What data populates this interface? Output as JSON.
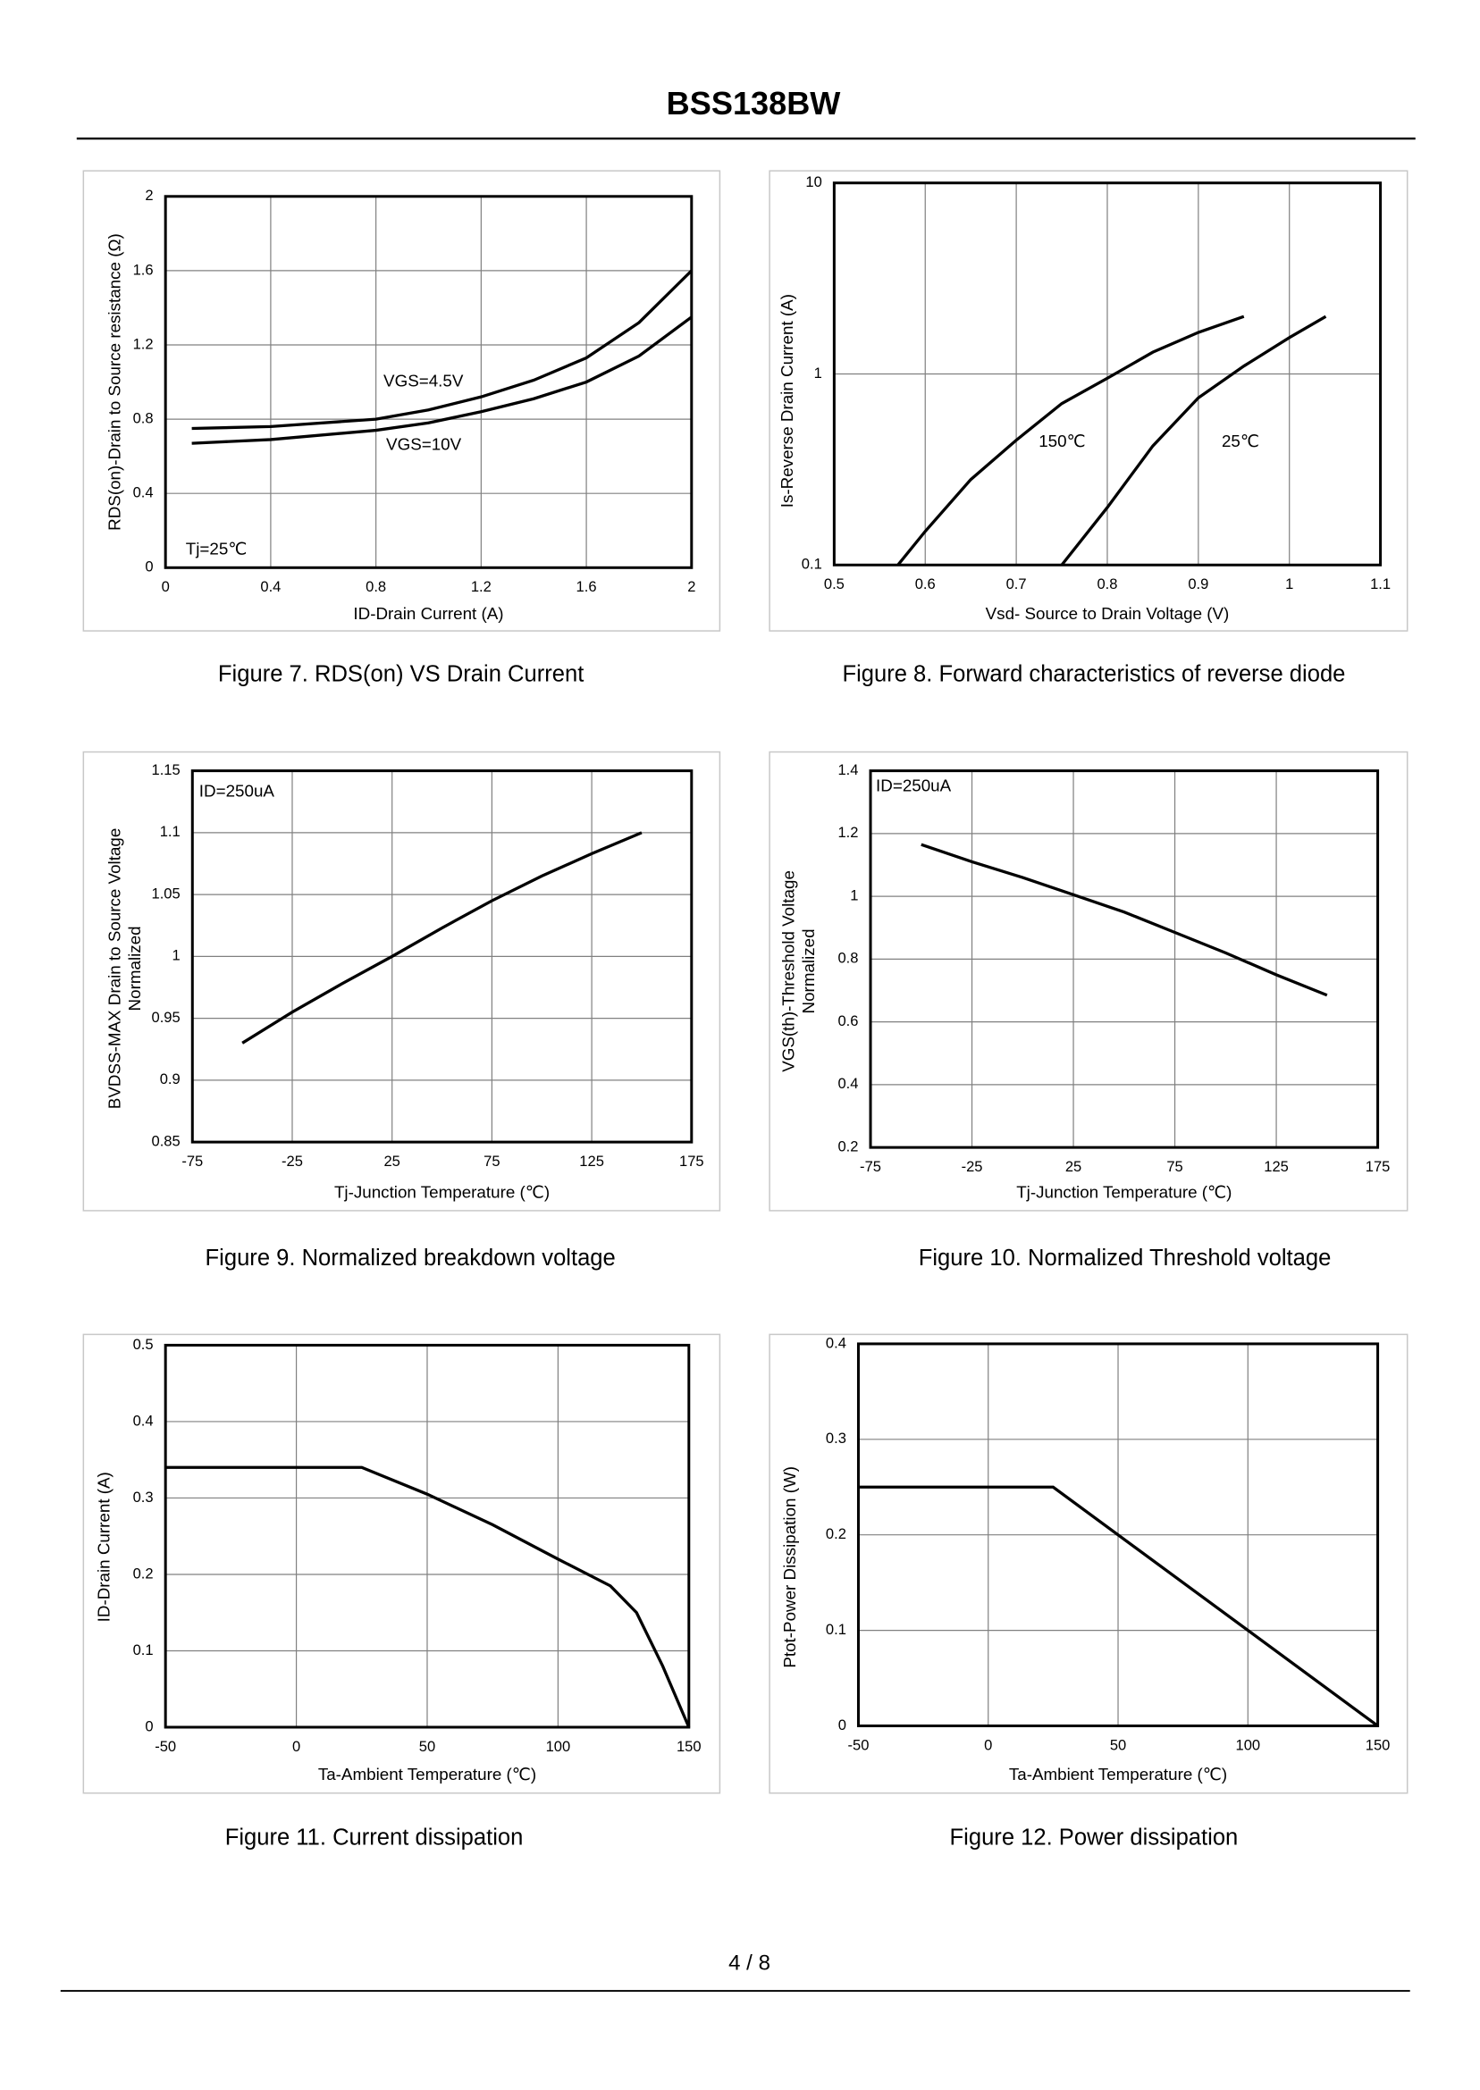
{
  "header": {
    "title": "BSS138BW"
  },
  "footer": {
    "page": "4 / 8"
  },
  "chart_data": [
    {
      "type": "line",
      "caption": "Figure 7.  RDS(on) VS Drain Current",
      "xlabel": "ID-Drain Current (A)",
      "ylabel": [
        "RDS(on)-Drain to Source resistance (Ω)"
      ],
      "annotations": [
        "Tj=25℃"
      ],
      "xlim": [
        0,
        2
      ],
      "xticks": [
        0,
        0.4,
        0.8,
        1.2,
        1.6,
        2
      ],
      "ylim": [
        0,
        2
      ],
      "yticks": [
        0,
        0.4,
        0.8,
        1.2,
        1.6,
        2
      ],
      "grid": true,
      "series": [
        {
          "name": "VGS=4.5V",
          "color": "#000000",
          "x": [
            0.1,
            0.4,
            0.8,
            1.0,
            1.2,
            1.4,
            1.6,
            1.8,
            2.0
          ],
          "values": [
            0.75,
            0.76,
            0.8,
            0.85,
            0.92,
            1.01,
            1.13,
            1.32,
            1.6
          ]
        },
        {
          "name": "VGS=10V",
          "color": "#000000",
          "x": [
            0.1,
            0.4,
            0.8,
            1.0,
            1.2,
            1.4,
            1.6,
            1.8,
            2.0
          ],
          "values": [
            0.67,
            0.69,
            0.74,
            0.78,
            0.84,
            0.91,
            1.0,
            1.14,
            1.35
          ]
        }
      ]
    },
    {
      "type": "line",
      "caption": "Figure 8.  Forward characteristics of reverse diode",
      "xlabel": "Vsd- Source to Drain Voltage (V)",
      "ylabel": [
        "Is-Reverse  Drain Current (A)"
      ],
      "annotations": [],
      "xlim": [
        0.5,
        1.1
      ],
      "xticks": [
        0.5,
        0.6,
        0.7,
        0.8,
        0.9,
        1,
        1.1
      ],
      "ylim": [
        0.1,
        10
      ],
      "yticks": [
        0.1,
        1,
        10
      ],
      "ylog": true,
      "grid": true,
      "series": [
        {
          "name": "150℃",
          "color": "#000000",
          "x": [
            0.57,
            0.6,
            0.65,
            0.7,
            0.75,
            0.8,
            0.85,
            0.9,
            0.95
          ],
          "values": [
            0.1,
            0.15,
            0.28,
            0.45,
            0.7,
            0.95,
            1.3,
            1.65,
            2
          ]
        },
        {
          "name": "25℃",
          "color": "#000000",
          "x": [
            0.75,
            0.8,
            0.85,
            0.9,
            0.95,
            1.0,
            1.04
          ],
          "values": [
            0.1,
            0.2,
            0.42,
            0.75,
            1.1,
            1.55,
            2
          ]
        }
      ]
    },
    {
      "type": "line",
      "caption": "Figure 9.  Normalized breakdown voltage",
      "xlabel": "Tj-Junction  Temperature (℃)",
      "ylabel": [
        "BVDSS-MAX Drain to Source Voltage",
        "Normalized"
      ],
      "annotations": [
        "ID=250uA"
      ],
      "xlim": [
        -75,
        175
      ],
      "xticks": [
        -75,
        -25,
        25,
        75,
        125,
        175
      ],
      "ylim": [
        0.85,
        1.15
      ],
      "yticks": [
        0.85,
        0.9,
        0.95,
        1,
        1.05,
        1.1,
        1.15
      ],
      "grid": true,
      "series": [
        {
          "color": "#000000",
          "x": [
            -50,
            -25,
            0,
            25,
            50,
            75,
            100,
            125,
            150
          ],
          "values": [
            0.93,
            0.955,
            0.978,
            1.0,
            1.023,
            1.045,
            1.065,
            1.083,
            1.1
          ]
        }
      ]
    },
    {
      "type": "line",
      "caption": "Figure 10.  Normalized Threshold voltage",
      "xlabel": "Tj-Junction  Temperature (℃)",
      "ylabel": [
        "VGS(th)-Threshold  Voltage",
        "Normalized"
      ],
      "annotations": [
        "ID=250uA"
      ],
      "xlim": [
        -75,
        175
      ],
      "xticks": [
        -75,
        -25,
        25,
        75,
        125,
        175
      ],
      "ylim": [
        0.2,
        1.4
      ],
      "yticks": [
        0.2,
        0.4,
        0.6,
        0.8,
        1,
        1.2,
        1.4
      ],
      "grid": true,
      "series": [
        {
          "color": "#000000",
          "x": [
            -50,
            -25,
            0,
            25,
            50,
            75,
            100,
            125,
            150
          ],
          "values": [
            1.165,
            1.11,
            1.06,
            1.005,
            0.95,
            0.885,
            0.82,
            0.75,
            0.685
          ]
        }
      ]
    },
    {
      "type": "line",
      "caption": "Figure 11.  Current dissipation",
      "xlabel": "Ta-Ambient Temperature (℃)",
      "ylabel": [
        "ID-Drain Current (A)"
      ],
      "annotations": [],
      "xlim": [
        -50,
        150
      ],
      "xticks": [
        -50,
        0,
        50,
        100,
        150
      ],
      "ylim": [
        0,
        0.5
      ],
      "yticks": [
        0,
        0.1,
        0.2,
        0.3,
        0.4,
        0.5
      ],
      "grid": true,
      "series": [
        {
          "color": "#000000",
          "x": [
            -50,
            25,
            50,
            75,
            100,
            120,
            130,
            140,
            150
          ],
          "values": [
            0.34,
            0.34,
            0.305,
            0.265,
            0.22,
            0.185,
            0.15,
            0.08,
            0
          ]
        }
      ]
    },
    {
      "type": "line",
      "caption": "Figure 12.  Power dissipation",
      "xlabel": "Ta-Ambient Temperature (℃)",
      "ylabel": [
        "Ptot-Power Dissipation (W)"
      ],
      "annotations": [],
      "xlim": [
        -50,
        150
      ],
      "xticks": [
        -50,
        0,
        50,
        100,
        150
      ],
      "ylim": [
        0,
        0.4
      ],
      "yticks": [
        0,
        0.1,
        0.2,
        0.3,
        0.4
      ],
      "grid": true,
      "series": [
        {
          "color": "#000000",
          "x": [
            -50,
            25,
            150
          ],
          "values": [
            0.25,
            0.25,
            0
          ]
        }
      ]
    }
  ]
}
